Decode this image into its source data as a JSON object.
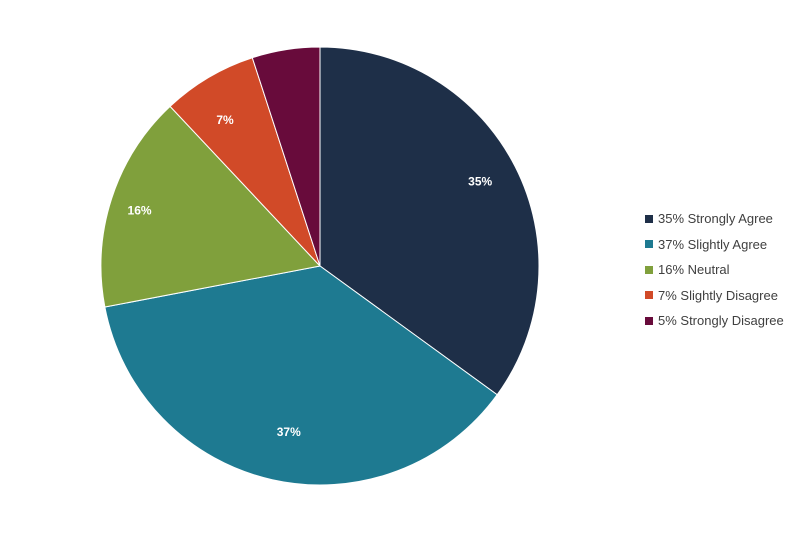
{
  "chart_data": {
    "type": "pie",
    "title": "",
    "categories": [
      "Strongly Agree",
      "Slightly Agree",
      "Neutral",
      "Slightly Disagree",
      "Strongly Disagree"
    ],
    "values": [
      35,
      37,
      16,
      7,
      5
    ],
    "data_labels": [
      "35%",
      "37%",
      "16%",
      "7%",
      "5%"
    ],
    "colors": [
      "#1e2f48",
      "#1e7a91",
      "#80a03c",
      "#d14a28",
      "#680b3b"
    ],
    "start_angle_deg": 0,
    "direction": "clockwise",
    "legend": {
      "position": "right",
      "entries": [
        "35% Strongly Agree",
        "37% Slightly Agree",
        "16% Neutral",
        "7% Slightly Disagree",
        "5% Strongly Disagree"
      ]
    }
  }
}
